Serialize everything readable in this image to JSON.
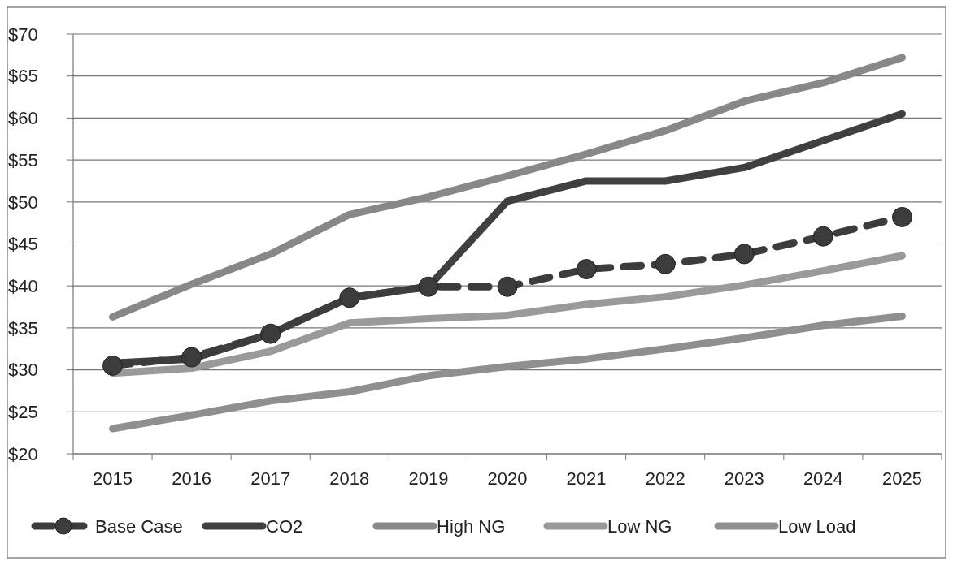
{
  "chart_data": {
    "type": "line",
    "categories": [
      "2015",
      "2016",
      "2017",
      "2018",
      "2019",
      "2020",
      "2021",
      "2022",
      "2023",
      "2024",
      "2025"
    ],
    "ylim": [
      20,
      70
    ],
    "yticks": [
      {
        "value": 20,
        "label": "$20"
      },
      {
        "value": 25,
        "label": "$25"
      },
      {
        "value": 30,
        "label": "$30"
      },
      {
        "value": 35,
        "label": "$35"
      },
      {
        "value": 40,
        "label": "$40"
      },
      {
        "value": 45,
        "label": "$45"
      },
      {
        "value": 50,
        "label": "$50"
      },
      {
        "value": 55,
        "label": "$55"
      },
      {
        "value": 60,
        "label": "$60"
      },
      {
        "value": 65,
        "label": "$65"
      },
      {
        "value": 70,
        "label": "$70"
      }
    ],
    "grid": "y",
    "legend": "bottom",
    "series": [
      {
        "name": "Base Case",
        "color": "#3c3c3c",
        "line_style": "dashed",
        "marker": "circle",
        "values": [
          30.5,
          31.5,
          34.3,
          38.6,
          39.9,
          39.9,
          42,
          42.6,
          43.8,
          45.9,
          48.2
        ]
      },
      {
        "name": "CO2",
        "color": "#404040",
        "line_style": "solid",
        "marker": "none",
        "values": [
          30.8,
          31.3,
          34.3,
          38.6,
          39.9,
          50.1,
          52.5,
          52.5,
          54.1,
          57.3,
          60.5
        ]
      },
      {
        "name": "High NG",
        "color": "#888888",
        "line_style": "solid",
        "marker": "none",
        "values": [
          36.3,
          40.2,
          43.8,
          48.5,
          50.6,
          53.1,
          55.7,
          58.5,
          62,
          64.2,
          67.2
        ]
      },
      {
        "name": "Low NG",
        "color": "#9a9a9a",
        "line_style": "solid",
        "marker": "none",
        "values": [
          29.6,
          30.2,
          32.2,
          35.6,
          36.1,
          36.5,
          37.8,
          38.7,
          40.1,
          41.8,
          43.6
        ]
      },
      {
        "name": "Low Load",
        "color": "#8f8f8f",
        "line_style": "solid",
        "marker": "none",
        "values": [
          23,
          24.6,
          26.3,
          27.4,
          29.3,
          30.4,
          31.3,
          32.5,
          33.8,
          35.3,
          36.4
        ]
      }
    ]
  }
}
